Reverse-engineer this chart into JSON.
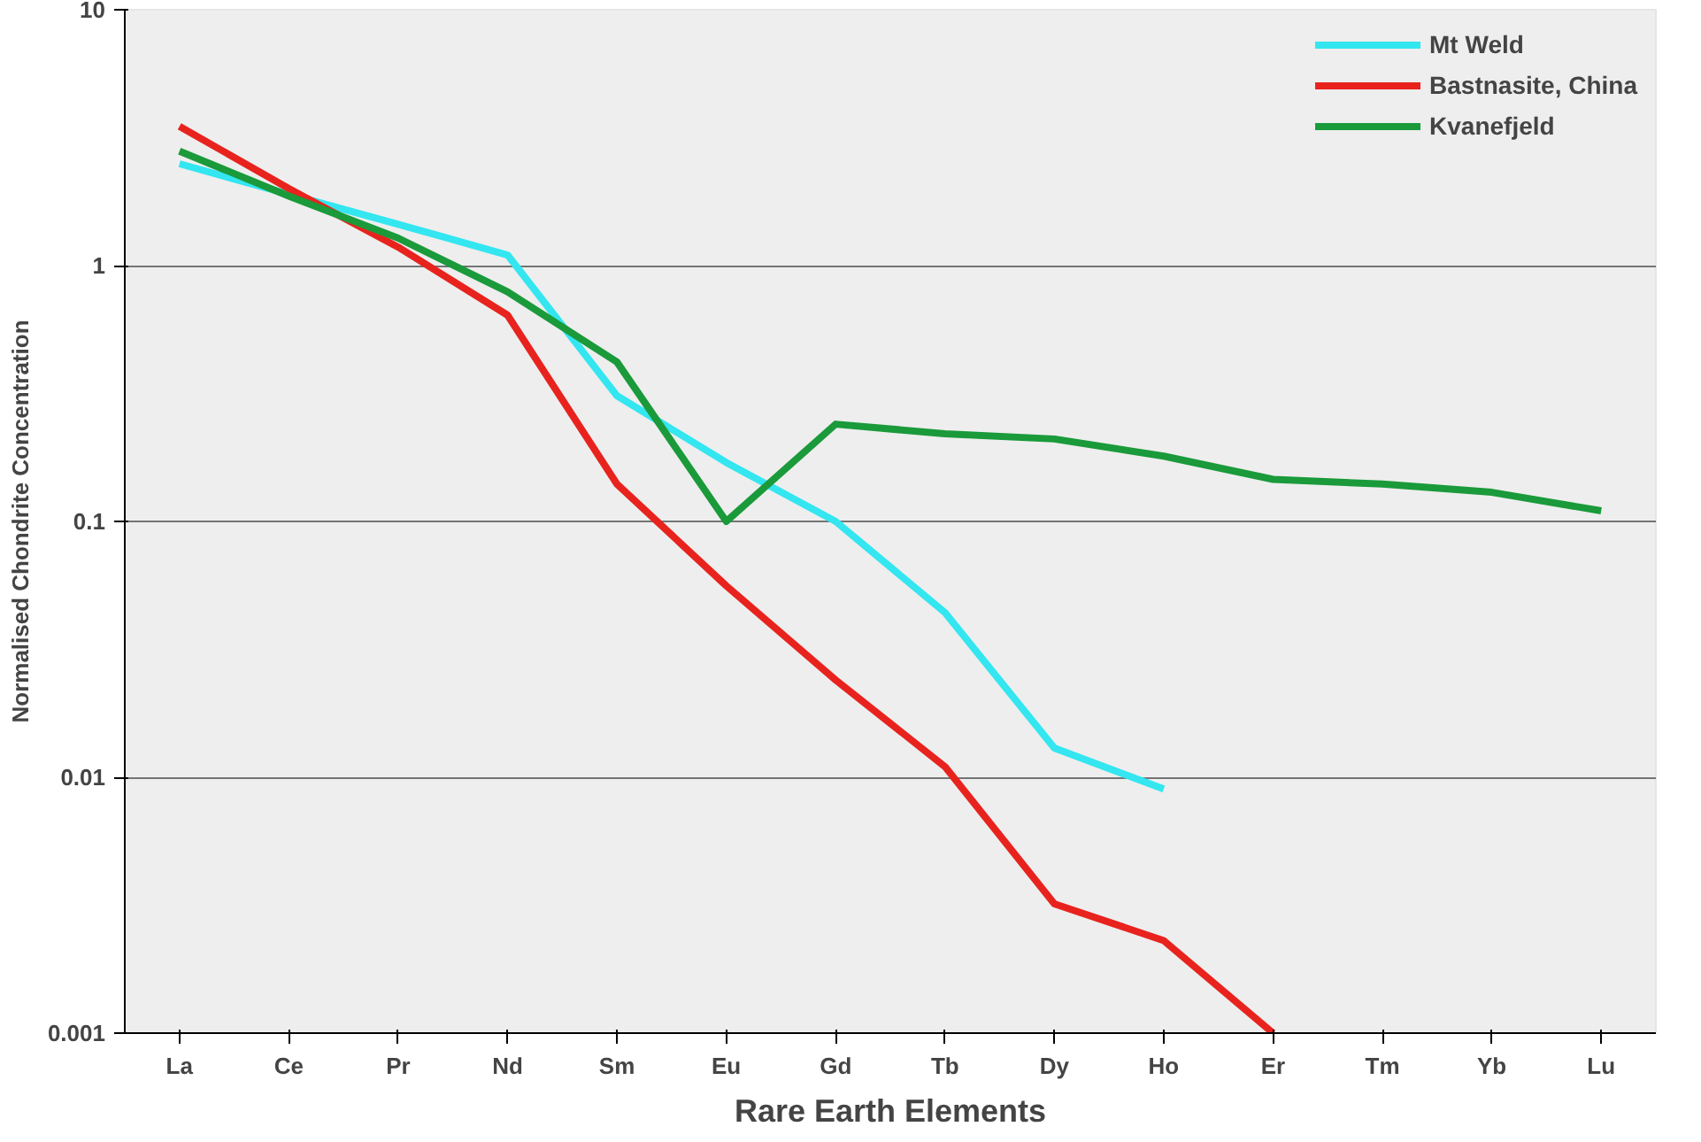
{
  "chart_data": {
    "type": "line",
    "xlabel": "Rare Earth Elements",
    "ylabel": "Normalised Chondrite Concentration",
    "categories": [
      "La",
      "Ce",
      "Pr",
      "Nd",
      "Sm",
      "Eu",
      "Gd",
      "Tb",
      "Dy",
      "Ho",
      "Er",
      "Tm",
      "Yb",
      "Lu"
    ],
    "series": [
      {
        "name": "Mt Weld",
        "color": "#33e6f0",
        "values": [
          2.5,
          1.9,
          1.45,
          1.1,
          0.31,
          0.17,
          0.1,
          0.044,
          0.013,
          0.009,
          null,
          null,
          null,
          null
        ]
      },
      {
        "name": "Bastnasite, China",
        "color": "#e8231e",
        "values": [
          3.5,
          2.0,
          1.18,
          0.64,
          0.14,
          0.056,
          0.024,
          0.011,
          0.0032,
          0.0023,
          0.001,
          null,
          null,
          null
        ]
      },
      {
        "name": "Kvanefjeld",
        "color": "#1a9a3a",
        "values": [
          2.8,
          1.87,
          1.28,
          0.79,
          0.42,
          0.1,
          0.24,
          0.22,
          0.21,
          0.18,
          0.146,
          0.14,
          0.13,
          0.11
        ]
      }
    ],
    "log": "y",
    "ylim": [
      0.001,
      10
    ],
    "yticks": [
      0.001,
      0.01,
      0.1,
      1,
      10
    ],
    "grid": "y",
    "legend": "top right",
    "marker": "none",
    "line_style": "solid"
  }
}
